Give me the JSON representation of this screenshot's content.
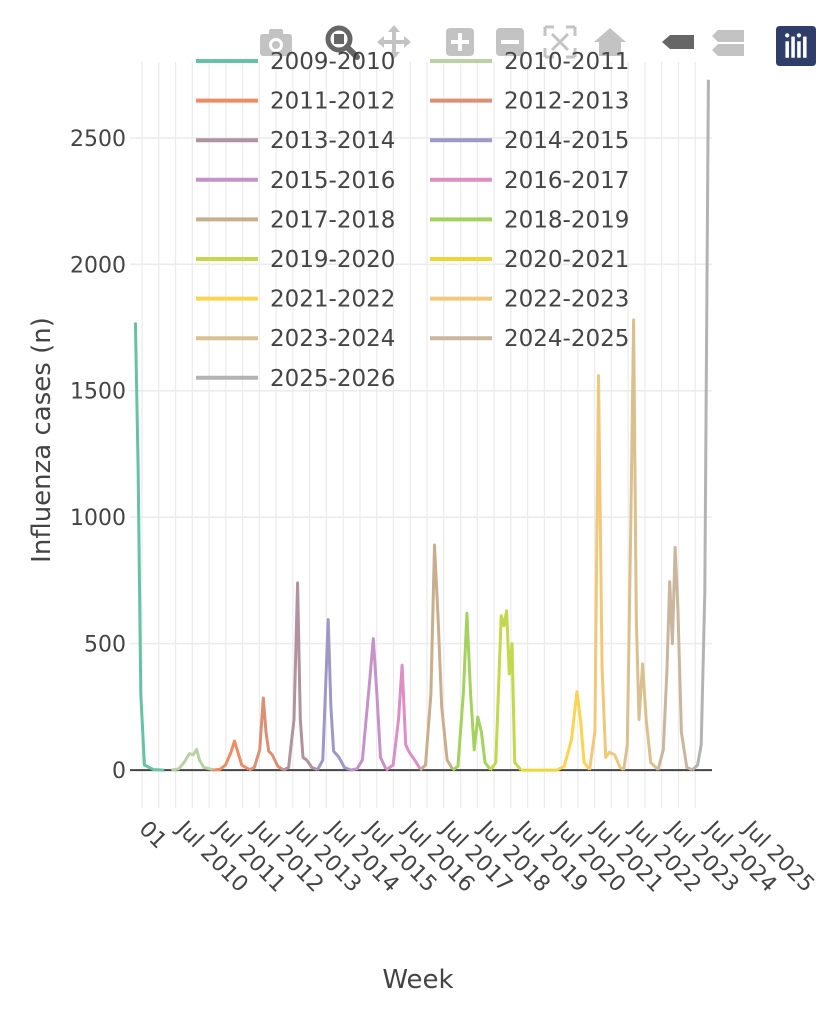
{
  "modebar": {
    "icons": [
      "camera-icon",
      "zoom-icon",
      "pan-icon",
      "zoom-in-icon",
      "zoom-out-icon",
      "autoscale-icon",
      "reset-axes-icon",
      "spike-lines-icon",
      "compare-hover-icon",
      "plotly-logo-icon"
    ],
    "logo_color": "#2f3d6b"
  },
  "chart_data": {
    "type": "line",
    "title": "",
    "xlabel": "Week",
    "ylabel": "Influenza cases (n)",
    "ylim": [
      -150,
      2800
    ],
    "y_ticks": [
      0,
      500,
      1000,
      1500,
      2000,
      2500
    ],
    "x_tick_labels": [
      "01",
      "Jul 2010",
      "Jul 2011",
      "Jul 2012",
      "Jul 2013",
      "Jul 2014",
      "Jul 2015",
      "Jul 2016",
      "Jul 2017",
      "Jul 2018",
      "Jul 2019",
      "Jul 2020",
      "Jul 2021",
      "Jul 2022",
      "Jul 2023",
      "Jul 2024",
      "Jul 2025"
    ],
    "grid": true,
    "legend_position": "top",
    "series": [
      {
        "name": "2009-2010",
        "color": "#66c2a5",
        "points": [
          [
            0,
            1770
          ],
          [
            0.15,
            1200
          ],
          [
            0.3,
            300
          ],
          [
            0.5,
            20
          ],
          [
            1,
            2
          ],
          [
            1.6,
            0
          ]
        ]
      },
      {
        "name": "2010-2011",
        "color": "#b9d1a5",
        "points": [
          [
            2,
            0
          ],
          [
            2.4,
            5
          ],
          [
            2.7,
            30
          ],
          [
            3.0,
            65
          ],
          [
            3.2,
            60
          ],
          [
            3.4,
            82
          ],
          [
            3.55,
            40
          ],
          [
            3.8,
            10
          ],
          [
            4.3,
            2
          ]
        ]
      },
      {
        "name": "2011-2012",
        "color": "#ef8c63",
        "points": [
          [
            4.3,
            0
          ],
          [
            4.7,
            3
          ],
          [
            5.0,
            20
          ],
          [
            5.3,
            70
          ],
          [
            5.5,
            115
          ],
          [
            5.65,
            80
          ],
          [
            5.9,
            20
          ],
          [
            6.3,
            3
          ]
        ]
      },
      {
        "name": "2012-2013",
        "color": "#d99073",
        "points": [
          [
            6.3,
            0
          ],
          [
            6.6,
            10
          ],
          [
            6.9,
            80
          ],
          [
            7.1,
            285
          ],
          [
            7.25,
            150
          ],
          [
            7.4,
            75
          ],
          [
            7.6,
            60
          ],
          [
            7.9,
            15
          ],
          [
            8.2,
            2
          ]
        ]
      },
      {
        "name": "2013-2014",
        "color": "#b0939e",
        "points": [
          [
            8.2,
            0
          ],
          [
            8.5,
            10
          ],
          [
            8.8,
            200
          ],
          [
            9.0,
            740
          ],
          [
            9.15,
            200
          ],
          [
            9.3,
            50
          ],
          [
            9.5,
            40
          ],
          [
            9.8,
            10
          ],
          [
            10.1,
            2
          ]
        ]
      },
      {
        "name": "2014-2015",
        "color": "#9e98c6",
        "points": [
          [
            10.1,
            0
          ],
          [
            10.4,
            40
          ],
          [
            10.7,
            595
          ],
          [
            10.85,
            250
          ],
          [
            11.0,
            75
          ],
          [
            11.3,
            50
          ],
          [
            11.6,
            10
          ],
          [
            11.9,
            2
          ]
        ]
      },
      {
        "name": "2015-2016",
        "color": "#c593ca",
        "points": [
          [
            11.9,
            0
          ],
          [
            12.3,
            5
          ],
          [
            12.6,
            40
          ],
          [
            13.0,
            350
          ],
          [
            13.2,
            520
          ],
          [
            13.4,
            300
          ],
          [
            13.6,
            50
          ],
          [
            13.9,
            5
          ]
        ]
      },
      {
        "name": "2016-2017",
        "color": "#dd8ec4",
        "points": [
          [
            13.9,
            0
          ],
          [
            14.3,
            20
          ],
          [
            14.6,
            200
          ],
          [
            14.8,
            415
          ],
          [
            15.0,
            100
          ],
          [
            15.2,
            70
          ],
          [
            15.5,
            40
          ],
          [
            15.8,
            5
          ]
        ]
      },
      {
        "name": "2017-2018",
        "color": "#c8ae8d",
        "points": [
          [
            15.8,
            0
          ],
          [
            16.1,
            20
          ],
          [
            16.4,
            300
          ],
          [
            16.6,
            890
          ],
          [
            16.8,
            600
          ],
          [
            17.0,
            250
          ],
          [
            17.3,
            40
          ],
          [
            17.6,
            5
          ]
        ]
      },
      {
        "name": "2018-2019",
        "color": "#a5d25f",
        "points": [
          [
            17.6,
            0
          ],
          [
            17.9,
            15
          ],
          [
            18.2,
            300
          ],
          [
            18.4,
            620
          ],
          [
            18.6,
            300
          ],
          [
            18.8,
            80
          ],
          [
            19.0,
            210
          ],
          [
            19.2,
            150
          ],
          [
            19.4,
            30
          ],
          [
            19.7,
            2
          ]
        ]
      },
      {
        "name": "2019-2020",
        "color": "#c3d84b",
        "points": [
          [
            19.7,
            0
          ],
          [
            20.0,
            30
          ],
          [
            20.3,
            610
          ],
          [
            20.45,
            570
          ],
          [
            20.6,
            630
          ],
          [
            20.75,
            380
          ],
          [
            20.9,
            500
          ],
          [
            21.05,
            30
          ],
          [
            21.4,
            0
          ]
        ]
      },
      {
        "name": "2020-2021",
        "color": "#ecd63a",
        "points": [
          [
            21.4,
            0
          ],
          [
            22.5,
            0
          ],
          [
            23.4,
            0
          ]
        ]
      },
      {
        "name": "2021-2022",
        "color": "#fbd550",
        "points": [
          [
            23.4,
            0
          ],
          [
            23.8,
            15
          ],
          [
            24.2,
            120
          ],
          [
            24.5,
            310
          ],
          [
            24.7,
            200
          ],
          [
            24.9,
            30
          ],
          [
            25.2,
            2
          ]
        ]
      },
      {
        "name": "2022-2023",
        "color": "#f1c87b",
        "points": [
          [
            25.2,
            0
          ],
          [
            25.5,
            150
          ],
          [
            25.7,
            1560
          ],
          [
            25.9,
            400
          ],
          [
            26.1,
            50
          ],
          [
            26.3,
            70
          ],
          [
            26.6,
            60
          ],
          [
            26.9,
            10
          ],
          [
            27.1,
            2
          ]
        ]
      },
      {
        "name": "2023-2024",
        "color": "#dbc08f",
        "points": [
          [
            27.1,
            0
          ],
          [
            27.3,
            100
          ],
          [
            27.5,
            1000
          ],
          [
            27.65,
            1780
          ],
          [
            27.8,
            600
          ],
          [
            27.95,
            200
          ],
          [
            28.15,
            420
          ],
          [
            28.35,
            200
          ],
          [
            28.6,
            30
          ],
          [
            29.0,
            2
          ]
        ]
      },
      {
        "name": "2024-2025",
        "color": "#cab69d",
        "points": [
          [
            29.0,
            0
          ],
          [
            29.3,
            80
          ],
          [
            29.5,
            400
          ],
          [
            29.65,
            745
          ],
          [
            29.8,
            500
          ],
          [
            29.95,
            880
          ],
          [
            30.1,
            650
          ],
          [
            30.3,
            150
          ],
          [
            30.6,
            10
          ],
          [
            30.9,
            2
          ]
        ]
      },
      {
        "name": "2025-2026",
        "color": "#b3b3b3",
        "points": [
          [
            30.9,
            0
          ],
          [
            31.2,
            20
          ],
          [
            31.4,
            100
          ],
          [
            31.6,
            700
          ],
          [
            31.8,
            2730
          ]
        ]
      }
    ]
  }
}
